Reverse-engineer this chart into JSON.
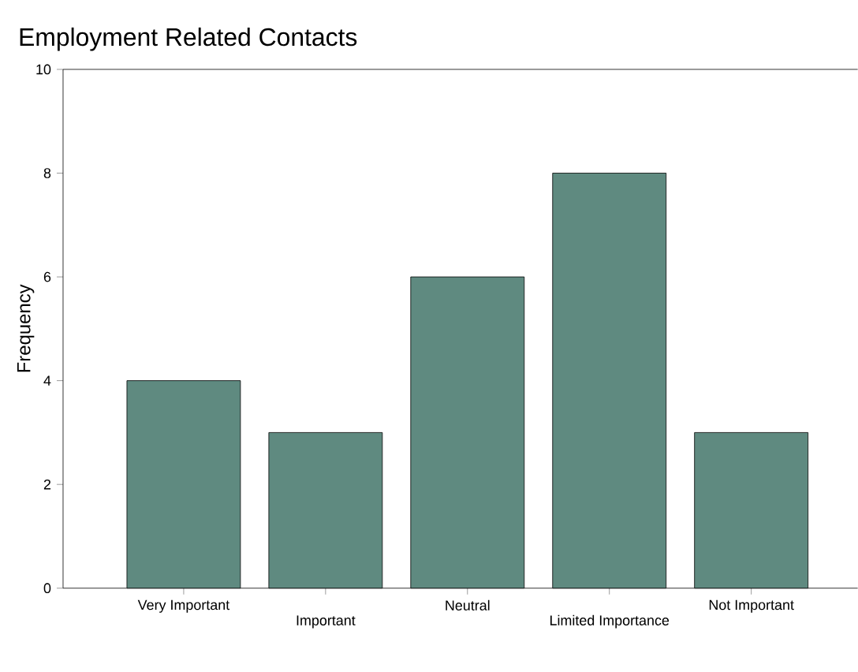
{
  "chart_data": {
    "type": "bar",
    "title": "Employment Related Contacts",
    "ylabel": "Frequency",
    "categories": [
      "Very Important",
      "Important",
      "Neutral",
      "Limited Importance",
      "Not Important"
    ],
    "values": [
      4,
      3,
      6,
      8,
      3
    ],
    "color": "#5f8a80",
    "ylim": [
      0,
      10
    ],
    "yticks": [
      0,
      2,
      4,
      6,
      8,
      10
    ]
  }
}
